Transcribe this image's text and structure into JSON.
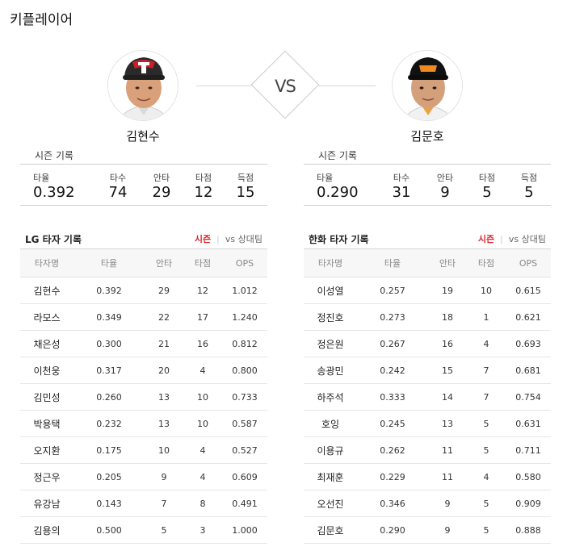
{
  "page": {
    "title": "키플레이어"
  },
  "matchup": {
    "vs_label": "VS",
    "left_player": {
      "name": "김현수"
    },
    "right_player": {
      "name": "김문호"
    }
  },
  "season": {
    "title": "시즌 기록",
    "labels": [
      "타율",
      "타수",
      "안타",
      "타점",
      "득점"
    ],
    "left_values": [
      "0.392",
      "74",
      "29",
      "12",
      "15"
    ],
    "right_values": [
      "0.290",
      "31",
      "9",
      "5",
      "5"
    ]
  },
  "batting": {
    "columns": [
      "타자명",
      "타율",
      "안타",
      "타점",
      "OPS"
    ],
    "tab_active": "시즌",
    "tab_separator": "|",
    "tab_inactive": "vs 상대팀",
    "left": {
      "title": "LG 타자 기록",
      "rows": [
        [
          "김현수",
          "0.392",
          "29",
          "12",
          "1.012"
        ],
        [
          "라모스",
          "0.349",
          "22",
          "17",
          "1.240"
        ],
        [
          "채은성",
          "0.300",
          "21",
          "16",
          "0.812"
        ],
        [
          "이천웅",
          "0.317",
          "20",
          "4",
          "0.800"
        ],
        [
          "김민성",
          "0.260",
          "13",
          "10",
          "0.733"
        ],
        [
          "박용택",
          "0.232",
          "13",
          "10",
          "0.587"
        ],
        [
          "오지환",
          "0.175",
          "10",
          "4",
          "0.527"
        ],
        [
          "정근우",
          "0.205",
          "9",
          "4",
          "0.609"
        ],
        [
          "유강남",
          "0.143",
          "7",
          "8",
          "0.491"
        ],
        [
          "김용의",
          "0.500",
          "5",
          "3",
          "1.000"
        ]
      ]
    },
    "right": {
      "title": "한화 타자 기록",
      "rows": [
        [
          "이성열",
          "0.257",
          "19",
          "10",
          "0.615"
        ],
        [
          "정진호",
          "0.273",
          "18",
          "1",
          "0.621"
        ],
        [
          "정은원",
          "0.267",
          "16",
          "4",
          "0.693"
        ],
        [
          "송광민",
          "0.242",
          "15",
          "7",
          "0.681"
        ],
        [
          "하주석",
          "0.333",
          "14",
          "7",
          "0.754"
        ],
        [
          "호잉",
          "0.245",
          "13",
          "5",
          "0.631"
        ],
        [
          "이용규",
          "0.262",
          "11",
          "5",
          "0.711"
        ],
        [
          "최재훈",
          "0.229",
          "11",
          "4",
          "0.580"
        ],
        [
          "오선진",
          "0.346",
          "9",
          "5",
          "0.909"
        ],
        [
          "김문호",
          "0.290",
          "9",
          "5",
          "0.888"
        ]
      ]
    }
  },
  "colors": {
    "accent": "#d9262b",
    "border": "#d6d6d6",
    "header_bg": "#f7f7f7"
  },
  "icons": {
    "left_avatar": "player-photo-lg",
    "right_avatar": "player-photo-hanwha"
  }
}
